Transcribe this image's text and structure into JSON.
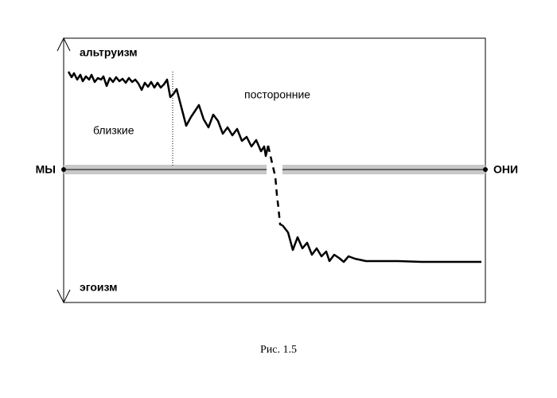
{
  "labels": {
    "top": "альтруизм",
    "bottom": "эгоизм",
    "left": "МЫ",
    "right": "ОНИ",
    "near": "близкие",
    "far": "посторонние"
  },
  "caption": "Рис. 1.5"
}
